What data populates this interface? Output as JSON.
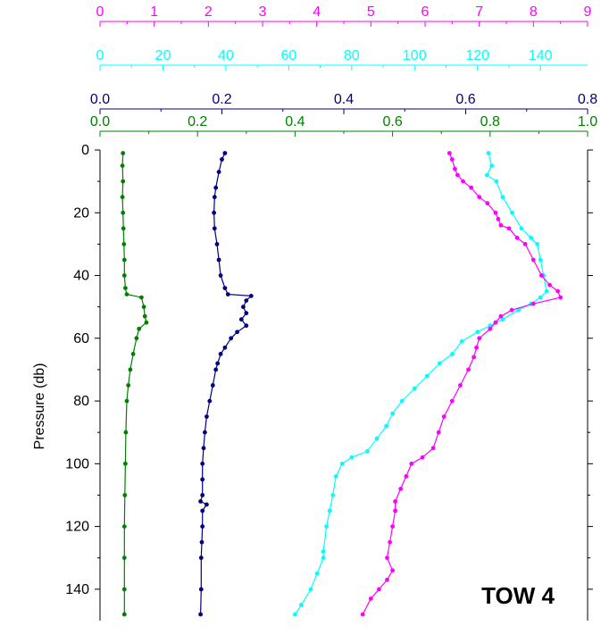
{
  "chart_data": {
    "type": "line",
    "title": "",
    "annotation": "TOW 4",
    "ylabel": "Pressure (db)",
    "ylim": [
      0,
      150
    ],
    "y_inverted": true,
    "y_ticks": [
      0,
      20,
      40,
      60,
      80,
      100,
      120,
      140
    ],
    "grid": false,
    "top_axes": [
      {
        "color": "#ff00ff",
        "range": [
          0,
          9
        ],
        "ticks": [
          0,
          1,
          2,
          3,
          4,
          5,
          6,
          7,
          8,
          9
        ],
        "labels": [
          "0",
          "1",
          "2",
          "3",
          "4",
          "5",
          "6",
          "7",
          "8",
          "9"
        ]
      },
      {
        "color": "#00ffff",
        "range": [
          0,
          155
        ],
        "ticks": [
          0,
          20,
          40,
          60,
          80,
          100,
          120,
          140
        ],
        "labels": [
          "0",
          "20",
          "40",
          "60",
          "80",
          "100",
          "120",
          "140"
        ]
      },
      {
        "color": "#000080",
        "range": [
          0,
          0.8
        ],
        "ticks": [
          0,
          0.2,
          0.4,
          0.6,
          0.8
        ],
        "labels": [
          "0.0",
          "0.2",
          "0.4",
          "0.6",
          "0.8"
        ]
      },
      {
        "color": "#008000",
        "range": [
          0,
          1.0
        ],
        "ticks": [
          0,
          0.2,
          0.4,
          0.6,
          0.8,
          1.0
        ],
        "labels": [
          "0.0",
          "0.2",
          "0.4",
          "0.6",
          "0.8",
          "1.0"
        ]
      }
    ],
    "series": [
      {
        "color": "#008000",
        "axis": 3,
        "points": [
          [
            0.047,
            1
          ],
          [
            0.046,
            5
          ],
          [
            0.047,
            10
          ],
          [
            0.046,
            15
          ],
          [
            0.047,
            20
          ],
          [
            0.048,
            25
          ],
          [
            0.049,
            30
          ],
          [
            0.05,
            35
          ],
          [
            0.05,
            40
          ],
          [
            0.052,
            44
          ],
          [
            0.055,
            46
          ],
          [
            0.085,
            47
          ],
          [
            0.09,
            50
          ],
          [
            0.092,
            53
          ],
          [
            0.095,
            55
          ],
          [
            0.08,
            57
          ],
          [
            0.075,
            60
          ],
          [
            0.068,
            65
          ],
          [
            0.062,
            70
          ],
          [
            0.058,
            75
          ],
          [
            0.055,
            80
          ],
          [
            0.053,
            90
          ],
          [
            0.052,
            100
          ],
          [
            0.051,
            110
          ],
          [
            0.05,
            120
          ],
          [
            0.05,
            130
          ],
          [
            0.05,
            140
          ],
          [
            0.05,
            148
          ]
        ]
      },
      {
        "color": "#000080",
        "axis": 2,
        "points": [
          [
            0.205,
            1
          ],
          [
            0.2,
            3
          ],
          [
            0.195,
            7
          ],
          [
            0.19,
            12
          ],
          [
            0.188,
            15
          ],
          [
            0.187,
            20
          ],
          [
            0.188,
            25
          ],
          [
            0.192,
            30
          ],
          [
            0.195,
            35
          ],
          [
            0.198,
            40
          ],
          [
            0.205,
            44
          ],
          [
            0.21,
            46
          ],
          [
            0.248,
            46.5
          ],
          [
            0.24,
            48
          ],
          [
            0.235,
            50
          ],
          [
            0.24,
            52
          ],
          [
            0.232,
            54
          ],
          [
            0.24,
            56
          ],
          [
            0.225,
            58
          ],
          [
            0.215,
            60
          ],
          [
            0.205,
            63
          ],
          [
            0.198,
            65
          ],
          [
            0.193,
            68
          ],
          [
            0.19,
            70
          ],
          [
            0.185,
            75
          ],
          [
            0.18,
            80
          ],
          [
            0.175,
            85
          ],
          [
            0.172,
            90
          ],
          [
            0.17,
            95
          ],
          [
            0.168,
            100
          ],
          [
            0.168,
            105
          ],
          [
            0.168,
            110
          ],
          [
            0.165,
            112
          ],
          [
            0.175,
            113
          ],
          [
            0.168,
            115
          ],
          [
            0.168,
            120
          ],
          [
            0.167,
            125
          ],
          [
            0.166,
            130
          ],
          [
            0.166,
            140
          ],
          [
            0.165,
            148
          ]
        ]
      },
      {
        "color": "#00ffff",
        "axis": 1,
        "points": [
          [
            123.5,
            1
          ],
          [
            124.5,
            5
          ],
          [
            123,
            8
          ],
          [
            126,
            10
          ],
          [
            128,
            15
          ],
          [
            131,
            20
          ],
          [
            134,
            25
          ],
          [
            137,
            28
          ],
          [
            139,
            30
          ],
          [
            140,
            35
          ],
          [
            141,
            40
          ],
          [
            142,
            45
          ],
          [
            140,
            47
          ],
          [
            137,
            49
          ],
          [
            133,
            51
          ],
          [
            128,
            54
          ],
          [
            124,
            56
          ],
          [
            120,
            58
          ],
          [
            115,
            61
          ],
          [
            112,
            65
          ],
          [
            108,
            68
          ],
          [
            104,
            72
          ],
          [
            100,
            76
          ],
          [
            96,
            80
          ],
          [
            93,
            84
          ],
          [
            91,
            88
          ],
          [
            88,
            92
          ],
          [
            85,
            96
          ],
          [
            80,
            98
          ],
          [
            77,
            100
          ],
          [
            75,
            104
          ],
          [
            74,
            110
          ],
          [
            73,
            115
          ],
          [
            72,
            120
          ],
          [
            71,
            128
          ],
          [
            71,
            130
          ],
          [
            69,
            135
          ],
          [
            67,
            140
          ],
          [
            64,
            145
          ],
          [
            62,
            148
          ]
        ]
      },
      {
        "color": "#ff00ff",
        "axis": 0,
        "points": [
          [
            6.45,
            1
          ],
          [
            6.5,
            3
          ],
          [
            6.55,
            6
          ],
          [
            6.6,
            8
          ],
          [
            6.7,
            10
          ],
          [
            6.85,
            12
          ],
          [
            7.0,
            15
          ],
          [
            7.15,
            17
          ],
          [
            7.3,
            20
          ],
          [
            7.35,
            22
          ],
          [
            7.4,
            24
          ],
          [
            7.55,
            25
          ],
          [
            7.7,
            28
          ],
          [
            7.85,
            30
          ],
          [
            8.0,
            35
          ],
          [
            8.15,
            40
          ],
          [
            8.3,
            43
          ],
          [
            8.45,
            45
          ],
          [
            8.5,
            47
          ],
          [
            8.0,
            49
          ],
          [
            7.6,
            51
          ],
          [
            7.4,
            53
          ],
          [
            7.3,
            55
          ],
          [
            7.2,
            57
          ],
          [
            7.0,
            60
          ],
          [
            6.95,
            63
          ],
          [
            6.9,
            66
          ],
          [
            6.8,
            70
          ],
          [
            6.65,
            75
          ],
          [
            6.5,
            80
          ],
          [
            6.35,
            85
          ],
          [
            6.25,
            90
          ],
          [
            6.15,
            95
          ],
          [
            5.95,
            98
          ],
          [
            5.75,
            100
          ],
          [
            5.65,
            104
          ],
          [
            5.55,
            108
          ],
          [
            5.45,
            112
          ],
          [
            5.45,
            115
          ],
          [
            5.4,
            120
          ],
          [
            5.35,
            125
          ],
          [
            5.3,
            130
          ],
          [
            5.4,
            134
          ],
          [
            5.3,
            137
          ],
          [
            5.15,
            140
          ],
          [
            5.0,
            143
          ],
          [
            4.85,
            148
          ]
        ]
      }
    ]
  }
}
